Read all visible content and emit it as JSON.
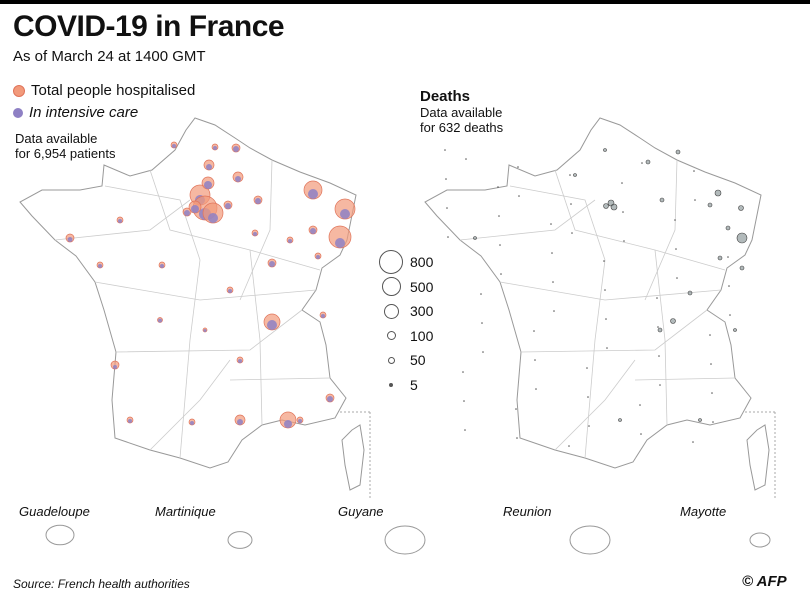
{
  "title": "COVID-19 in France",
  "subtitle": "As of March 24 at 1400 GMT",
  "legend": {
    "hospitalised": "Total people hospitalised",
    "intensive": "In intensive care",
    "colors": {
      "hospitalised": "#f29a7b",
      "intensive": "#8e80c4",
      "deaths": "#7f8c8d"
    }
  },
  "left_note": {
    "line1": "Data available",
    "line2": "for 6,954 patients"
  },
  "deaths": {
    "title": "Deaths",
    "line1": "Data available",
    "line2": "for 632 deaths"
  },
  "size_legend": [
    "800",
    "500",
    "300",
    "100",
    "50",
    "5"
  ],
  "territories": [
    "Guadeloupe",
    "Martinique",
    "Guyane",
    "Reunion",
    "Mayotte"
  ],
  "source": "Source: French health authorities",
  "credit": "© AFP"
}
